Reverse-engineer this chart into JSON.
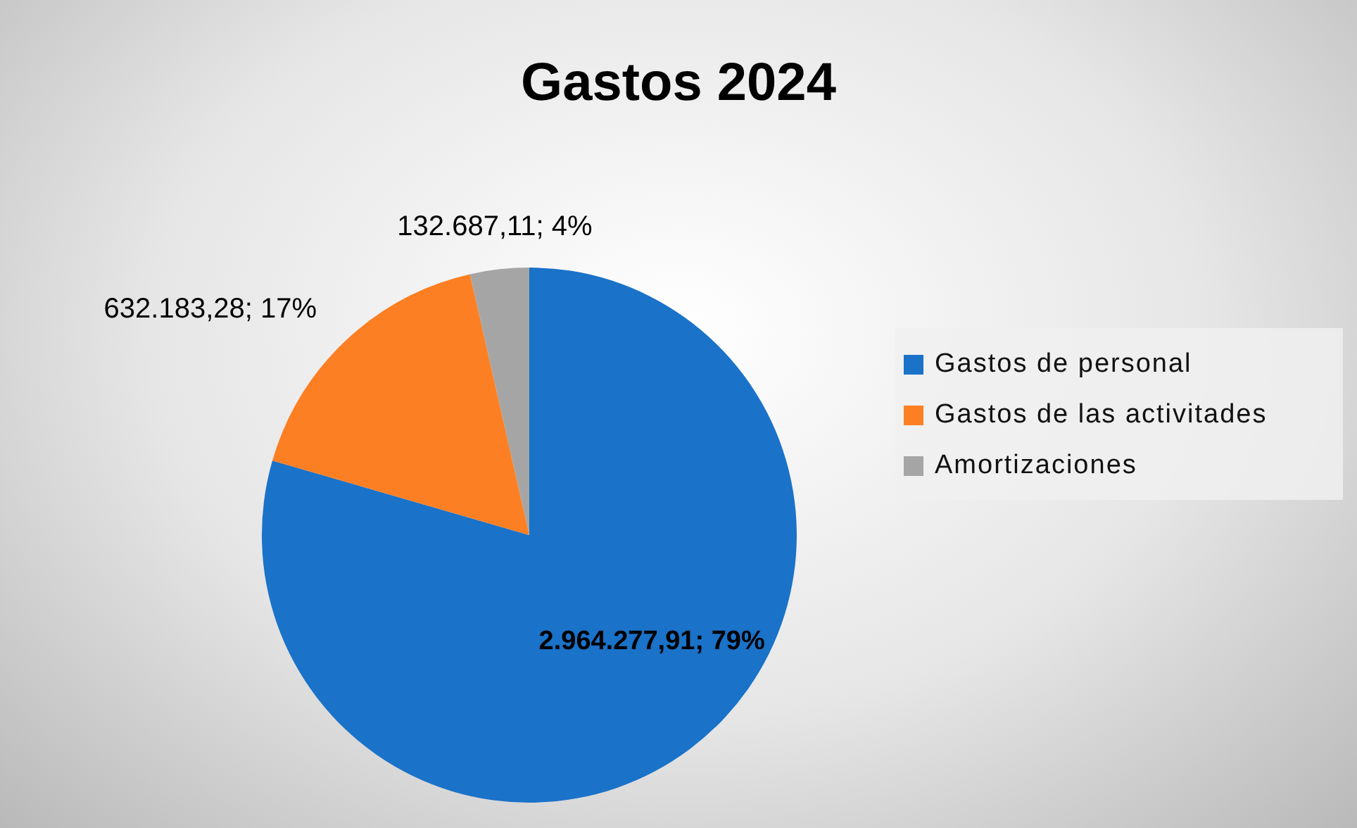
{
  "chart_data": {
    "type": "pie",
    "title": "Gastos 2024",
    "categories": [
      "Gastos de personal",
      "Gastos de las activitades",
      "Amortizaciones"
    ],
    "values": [
      2964277.91,
      632183.28,
      132687.11
    ],
    "colors": [
      "#1a72c9",
      "#fd7f23",
      "#a5a5a5"
    ],
    "value_labels": [
      "2.964.277,91; 79%",
      "632.183,28; 17%",
      "132.687,11; 4%"
    ],
    "legend": "right"
  }
}
